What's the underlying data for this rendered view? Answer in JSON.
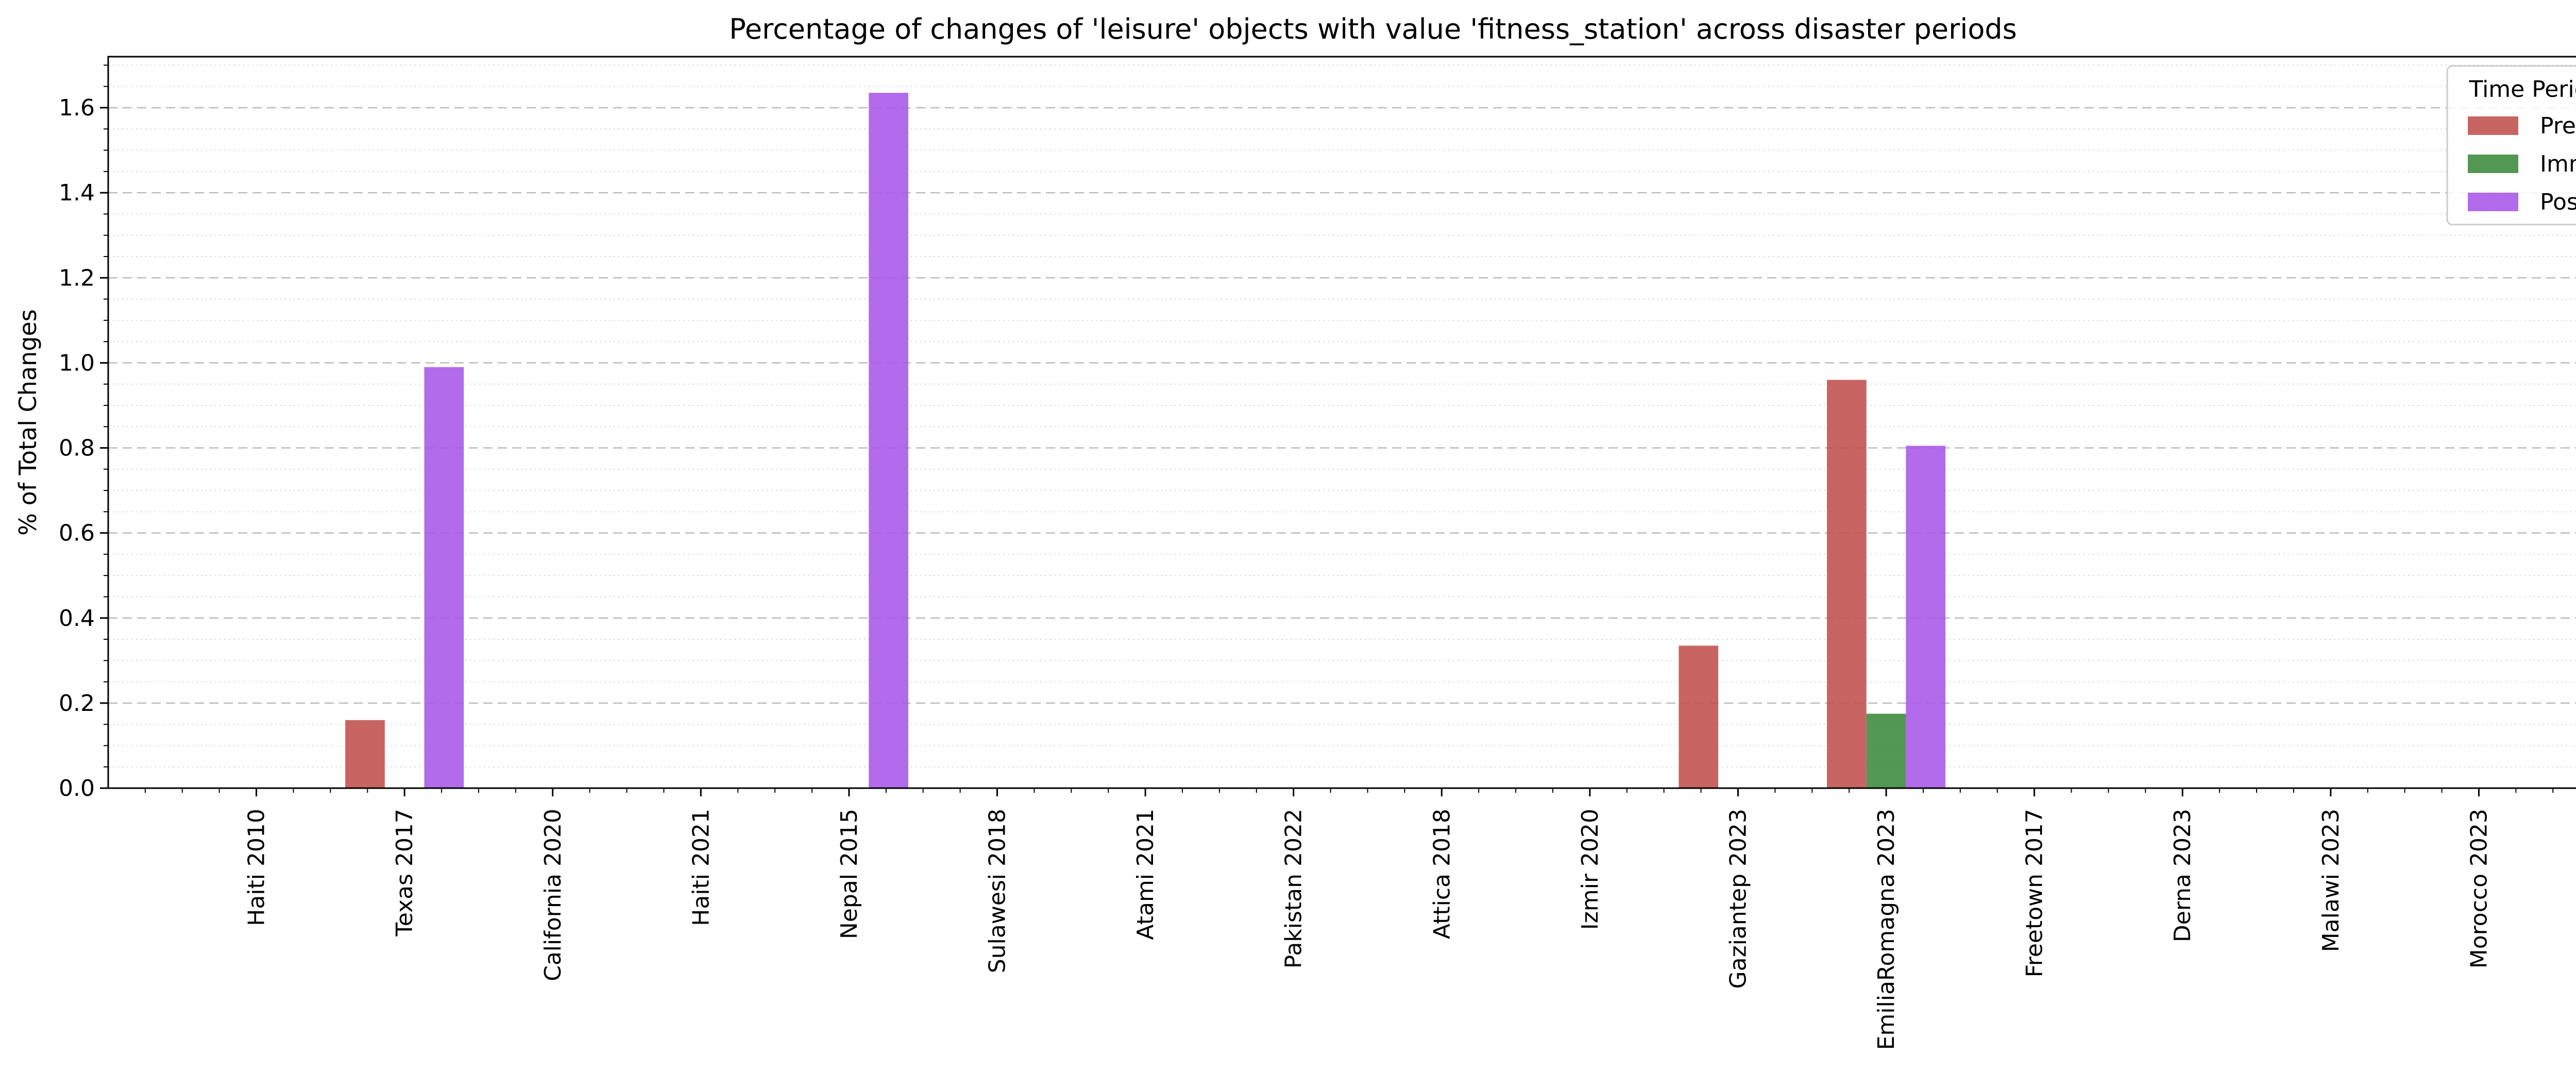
{
  "chart_data": {
    "type": "bar",
    "title": "Percentage of changes of 'leisure' objects with value 'fitness_station' across disaster periods",
    "xlabel": "",
    "ylabel": "% of Total Changes",
    "ylim": [
      0,
      1.72
    ],
    "yticks": [
      "0.0",
      "0.2",
      "0.4",
      "0.6",
      "0.8",
      "1.0",
      "1.2",
      "1.4",
      "1.6"
    ],
    "grid": "horizontal dashed major, dotted minor",
    "legend": {
      "title": "Time Period",
      "placement": "top-right"
    },
    "categories": [
      "Haiti 2010",
      "Texas 2017",
      "California 2020",
      "Haiti 2021",
      "Nepal 2015",
      "Sulawesi 2018",
      "Atami 2021",
      "Pakistan 2022",
      "Attica 2018",
      "Izmir 2020",
      "Gaziantep 2023",
      "EmiliaRomagna 2023",
      "Freetown 2017",
      "Derna 2023",
      "Malawi 2023",
      "Morocco 2023"
    ],
    "series": [
      {
        "name": "Pre",
        "color": "#c0504d",
        "values": [
          0,
          0.16,
          0,
          0,
          0,
          0,
          0,
          0,
          0,
          0,
          0.335,
          0.96,
          0,
          0,
          0,
          0
        ]
      },
      {
        "name": "Imm",
        "color": "#3a8a3a",
        "values": [
          0,
          0,
          0,
          0,
          0,
          0,
          0,
          0,
          0,
          0,
          0,
          0.175,
          0,
          0,
          0,
          0
        ]
      },
      {
        "name": "Post",
        "color": "#a757e8",
        "values": [
          0,
          0.99,
          0,
          0,
          1.635,
          0,
          0,
          0,
          0,
          0,
          0,
          0.805,
          0,
          0,
          0,
          0
        ]
      }
    ]
  }
}
